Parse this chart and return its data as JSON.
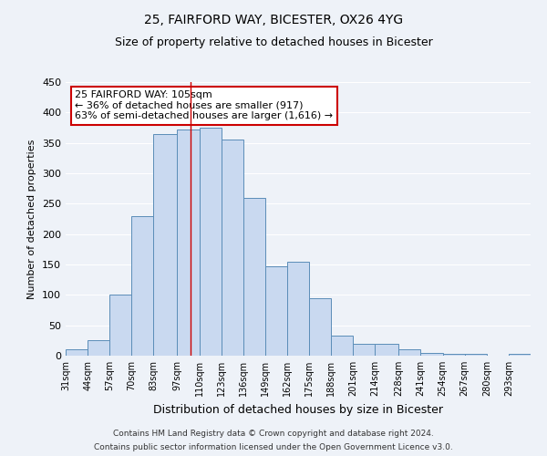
{
  "title1": "25, FAIRFORD WAY, BICESTER, OX26 4YG",
  "title2": "Size of property relative to detached houses in Bicester",
  "xlabel": "Distribution of detached houses by size in Bicester",
  "ylabel": "Number of detached properties",
  "bin_labels": [
    "31sqm",
    "44sqm",
    "57sqm",
    "70sqm",
    "83sqm",
    "97sqm",
    "110sqm",
    "123sqm",
    "136sqm",
    "149sqm",
    "162sqm",
    "175sqm",
    "188sqm",
    "201sqm",
    "214sqm",
    "228sqm",
    "241sqm",
    "254sqm",
    "267sqm",
    "280sqm",
    "293sqm"
  ],
  "bar_values": [
    10,
    25,
    100,
    230,
    365,
    372,
    375,
    355,
    260,
    147,
    155,
    95,
    33,
    20,
    20,
    10,
    5,
    3,
    3,
    0,
    3
  ],
  "bar_color": "#c9d9f0",
  "bar_edge_color": "#5b8db8",
  "property_line_x": 105,
  "bin_edges": [
    31,
    44,
    57,
    70,
    83,
    97,
    110,
    123,
    136,
    149,
    162,
    175,
    188,
    201,
    214,
    228,
    241,
    254,
    267,
    280,
    293,
    306
  ],
  "annotation_line1": "25 FAIRFORD WAY: 105sqm",
  "annotation_line2": "← 36% of detached houses are smaller (917)",
  "annotation_line3": "63% of semi-detached houses are larger (1,616) →",
  "annotation_box_color": "#ffffff",
  "annotation_box_edge": "#cc0000",
  "ylim": [
    0,
    450
  ],
  "yticks": [
    0,
    50,
    100,
    150,
    200,
    250,
    300,
    350,
    400,
    450
  ],
  "footer1": "Contains HM Land Registry data © Crown copyright and database right 2024.",
  "footer2": "Contains public sector information licensed under the Open Government Licence v3.0.",
  "bg_color": "#eef2f8",
  "grid_color": "#ffffff",
  "line_color": "#cc0000"
}
